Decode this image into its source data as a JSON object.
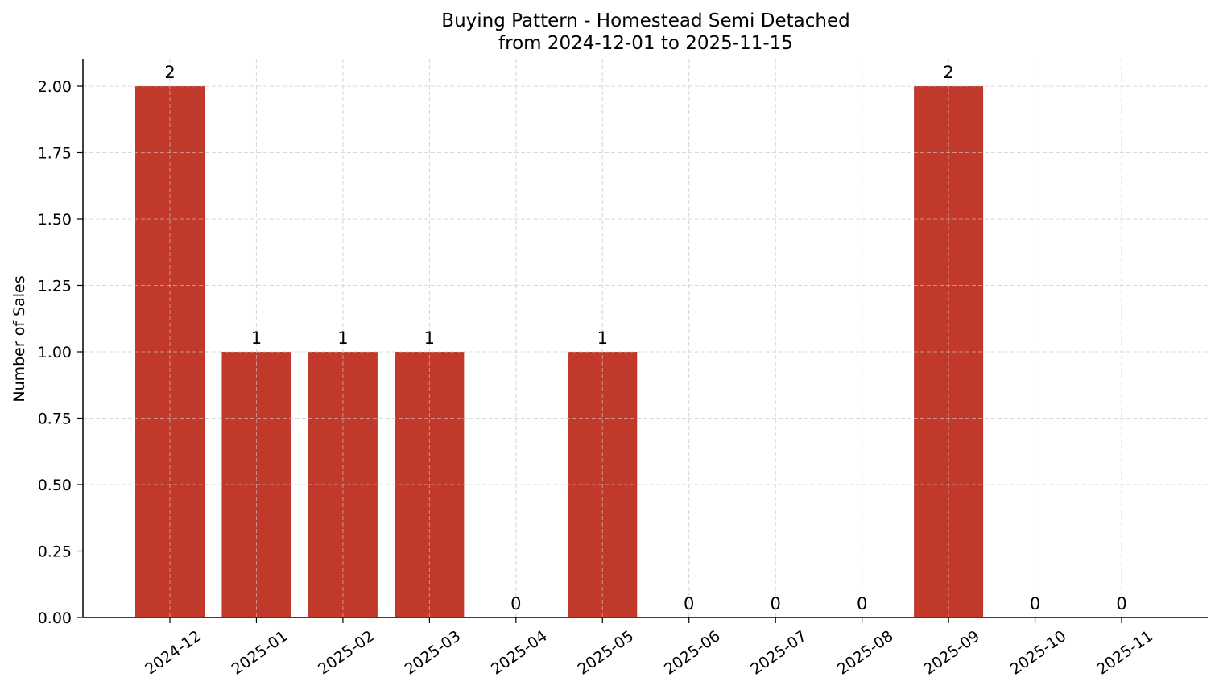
{
  "chart_data": {
    "type": "bar",
    "title": "Buying Pattern - Homestead Semi Detached",
    "subtitle": "from 2024-12-01 to 2025-11-15",
    "xlabel": "",
    "ylabel": "Number of Sales",
    "categories": [
      "2024-12",
      "2025-01",
      "2025-02",
      "2025-03",
      "2025-04",
      "2025-05",
      "2025-06",
      "2025-07",
      "2025-08",
      "2025-09",
      "2025-10",
      "2025-11"
    ],
    "values": [
      2,
      1,
      1,
      1,
      0,
      1,
      0,
      0,
      0,
      2,
      0,
      0
    ],
    "data_labels": [
      "2",
      "1",
      "1",
      "1",
      "0",
      "1",
      "0",
      "0",
      "0",
      "2",
      "0",
      "0"
    ],
    "ylim": [
      0,
      2.1
    ],
    "yticks": [
      0.0,
      0.25,
      0.5,
      0.75,
      1.0,
      1.25,
      1.5,
      1.75,
      2.0
    ],
    "ytick_labels": [
      "0.00",
      "0.25",
      "0.50",
      "0.75",
      "1.00",
      "1.25",
      "1.50",
      "1.75",
      "2.00"
    ],
    "grid": true,
    "grid_style": "dashed",
    "legend": null,
    "xtick_rotation": 35
  },
  "colors": {
    "bar": "#C0392B",
    "grid": "#d9d9d9",
    "axis": "#000000"
  }
}
